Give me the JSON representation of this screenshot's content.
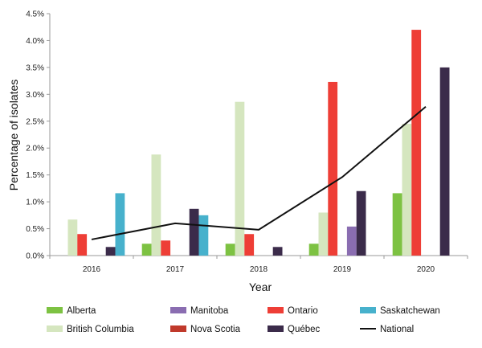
{
  "chart_data": {
    "type": "bar",
    "title": "",
    "xlabel": "Year",
    "ylabel": "Percentage of isolates",
    "categories": [
      "2016",
      "2017",
      "2018",
      "2019",
      "2020"
    ],
    "ylim": [
      0,
      4.5
    ],
    "yticks": [
      "0.0%",
      "0.5%",
      "1.0%",
      "1.5%",
      "2.0%",
      "2.5%",
      "3.0%",
      "3.5%",
      "4.0%",
      "4.5%"
    ],
    "grid": false,
    "series": [
      {
        "name": "Alberta",
        "color": "#7dc242",
        "values": [
          0,
          0.22,
          0.22,
          0.22,
          1.16
        ]
      },
      {
        "name": "British Columbia",
        "color": "#d5e6bf",
        "values": [
          0.67,
          1.88,
          2.86,
          0.8,
          2.45
        ]
      },
      {
        "name": "Ontario",
        "color": "#ee3e36",
        "values": [
          0.4,
          0.28,
          0.4,
          3.23,
          4.2
        ]
      },
      {
        "name": "Nova Scotia",
        "color": "#c0392b",
        "values": [
          0,
          0,
          0,
          0,
          0
        ]
      },
      {
        "name": "Manitoba",
        "color": "#8a6db1",
        "values": [
          0,
          0,
          0,
          0.54,
          0
        ]
      },
      {
        "name": "Québec",
        "color": "#3b2b4a",
        "values": [
          0.16,
          0.87,
          0.16,
          1.2,
          3.5
        ]
      },
      {
        "name": "Saskatchewan",
        "color": "#47b1cc",
        "values": [
          1.16,
          0.75,
          0,
          0,
          0
        ]
      }
    ],
    "line": {
      "name": "National",
      "color": "#111111",
      "values": [
        0.3,
        0.6,
        0.48,
        1.46,
        2.77
      ]
    },
    "legend": {
      "placement": "bottom",
      "entries": [
        "Alberta",
        "British Columbia",
        "Manitoba",
        "Nova Scotia",
        "Ontario",
        "Québec",
        "Saskatchewan",
        "National"
      ]
    }
  }
}
